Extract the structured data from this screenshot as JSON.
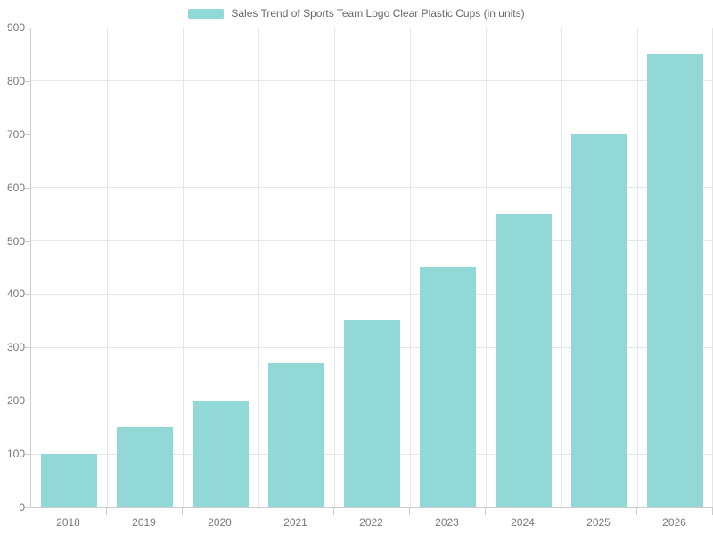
{
  "chart_data": {
    "type": "bar",
    "title": "Sales Trend of Sports Team Logo Clear Plastic Cups (in units)",
    "categories": [
      "2018",
      "2019",
      "2020",
      "2021",
      "2022",
      "2023",
      "2024",
      "2025",
      "2026"
    ],
    "values": [
      100,
      150,
      200,
      270,
      350,
      450,
      550,
      700,
      850
    ],
    "series": [
      {
        "name": "Sales Trend of Sports Team Logo Clear Plastic Cups (in units)",
        "values": [
          100,
          150,
          200,
          270,
          350,
          450,
          550,
          700,
          850
        ]
      }
    ],
    "xlabel": "",
    "ylabel": "",
    "ylim": [
      0,
      900
    ],
    "y_ticks": [
      0,
      100,
      200,
      300,
      400,
      500,
      600,
      700,
      800,
      900
    ],
    "grid": true,
    "legend_position": "top-center",
    "legend_entries": [
      "Sales Trend of Sports Team Logo Clear Plastic Cups (in units)"
    ],
    "bar_color": "#92d8d6"
  },
  "legend": {
    "label": "Sales Trend of Sports Team Logo Clear Plastic Cups (in units)"
  },
  "colors": {
    "bar": "#92d8d6",
    "gridline": "#e6e6e6",
    "axis_line": "#cccccc",
    "axis_text": "#777777",
    "legend_text": "#666666",
    "background": "#ffffff"
  }
}
